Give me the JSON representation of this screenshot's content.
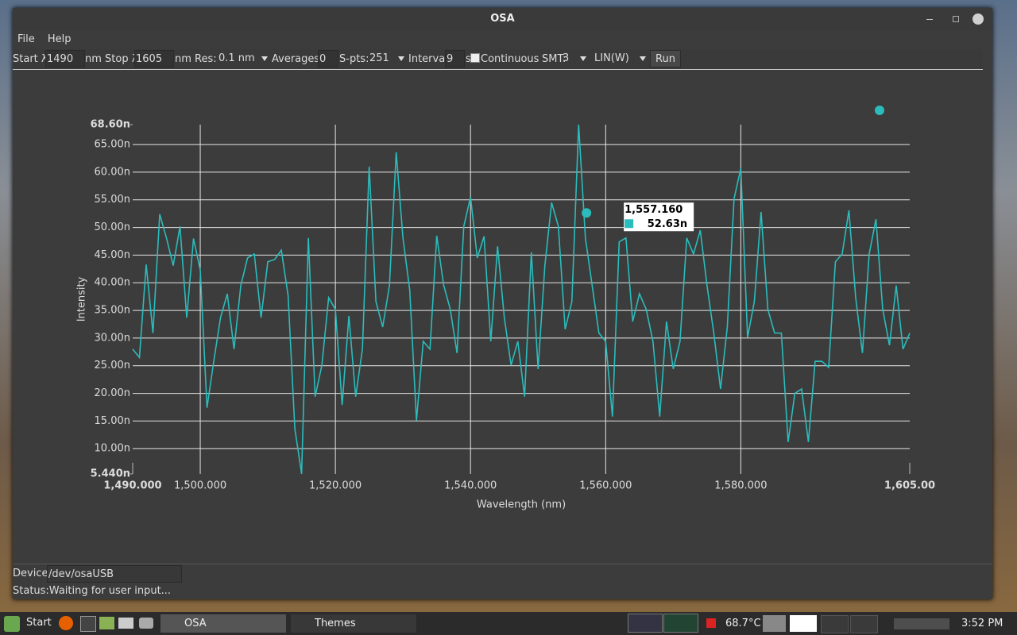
{
  "window": {
    "title": "OSA"
  },
  "menu": [
    "File",
    "Help"
  ],
  "toolbar": {
    "start_label": "Start λ:",
    "start_value": 1490,
    "stop_label": "nm Stop λ:",
    "stop_value": 1605,
    "res_label": "nm Res:",
    "res_value": "0.1 nm",
    "averages_label": "Averages:",
    "averages_value": 0,
    "spts_label": "S-pts:",
    "spts_value": 251,
    "interval_label": "Interval:",
    "interval_value": 9,
    "interval_unit": "s",
    "continuous_label": "Continuous",
    "smt_label": "SMT:",
    "smt_value": 3,
    "scale_value": "LIN(W)",
    "run_button": "Run"
  },
  "chart_data": {
    "type": "line",
    "xlabel": "Wavelength (nm)",
    "ylabel": "Intensity",
    "color": "#2bbcbc",
    "grid": true,
    "xlim": [
      1490,
      1605
    ],
    "ylim": [
      5.44,
      68.6
    ],
    "xticks": [
      {
        "value": 1490,
        "label": "1,490.000"
      },
      {
        "value": 1500,
        "label": "1,500.000"
      },
      {
        "value": 1520,
        "label": "1,520.000"
      },
      {
        "value": 1540,
        "label": "1,540.000"
      },
      {
        "value": 1560,
        "label": "1,560.000"
      },
      {
        "value": 1580,
        "label": "1,580.000"
      },
      {
        "value": 1605,
        "label": "1,605.00"
      }
    ],
    "yticks": [
      {
        "value": 68.6,
        "label": "68.60n"
      },
      {
        "value": 65,
        "label": "65.00n"
      },
      {
        "value": 60,
        "label": "60.00n"
      },
      {
        "value": 55,
        "label": "55.00n"
      },
      {
        "value": 50,
        "label": "50.00n"
      },
      {
        "value": 45,
        "label": "45.00n"
      },
      {
        "value": 40,
        "label": "40.00n"
      },
      {
        "value": 35,
        "label": "35.00n"
      },
      {
        "value": 30,
        "label": "30.00n"
      },
      {
        "value": 25,
        "label": "25.00n"
      },
      {
        "value": 20,
        "label": "20.00n"
      },
      {
        "value": 15,
        "label": "15.00n"
      },
      {
        "value": 10,
        "label": "10.00n"
      },
      {
        "value": 5.44,
        "label": "5.440n"
      }
    ],
    "x": [
      1490,
      1491,
      1492,
      1493,
      1494,
      1495,
      1496,
      1497,
      1498,
      1499,
      1500,
      1501,
      1502,
      1503,
      1504,
      1505,
      1506,
      1507,
      1508,
      1509,
      1510,
      1511,
      1512,
      1513,
      1514,
      1515,
      1516,
      1517,
      1518,
      1519,
      1520,
      1521,
      1522,
      1523,
      1524,
      1525,
      1526,
      1527,
      1528,
      1529,
      1530,
      1531,
      1532,
      1533,
      1534,
      1535,
      1536,
      1537,
      1538,
      1539,
      1540,
      1541,
      1542,
      1543,
      1544,
      1545,
      1546,
      1547,
      1548,
      1549,
      1550,
      1551,
      1552,
      1553,
      1554,
      1555,
      1556,
      1557,
      1558,
      1559,
      1560,
      1561,
      1562,
      1563,
      1564,
      1565,
      1566,
      1567,
      1568,
      1569,
      1570,
      1571,
      1572,
      1573,
      1574,
      1575,
      1576,
      1577,
      1578,
      1579,
      1580,
      1581,
      1582,
      1583,
      1584,
      1585,
      1586,
      1587,
      1588,
      1589,
      1590,
      1591,
      1592,
      1593,
      1594,
      1595,
      1596,
      1597,
      1598,
      1599,
      1600,
      1601,
      1602,
      1603,
      1604,
      1605
    ],
    "values": [
      28.0,
      26.5,
      43.3,
      30.9,
      52.4,
      48.1,
      43.1,
      50.2,
      33.7,
      48.0,
      42.3,
      17.4,
      25.8,
      33.7,
      38.0,
      28.0,
      39.5,
      44.5,
      45.2,
      33.7,
      43.8,
      44.2,
      45.9,
      37.7,
      13.6,
      5.44,
      48.1,
      19.4,
      25.1,
      37.3,
      35.2,
      17.9,
      34.0,
      19.4,
      28.0,
      61.0,
      36.6,
      32.0,
      39.5,
      63.6,
      48.1,
      38.7,
      15.1,
      29.4,
      28.0,
      48.5,
      39.7,
      35.2,
      27.3,
      50.2,
      55.5,
      44.5,
      48.4,
      29.4,
      46.6,
      33.7,
      25.1,
      29.4,
      19.4,
      45.5,
      24.4,
      43.1,
      54.5,
      50.2,
      31.6,
      36.6,
      68.6,
      48.1,
      39.5,
      30.9,
      29.4,
      15.8,
      47.4,
      48.1,
      33.0,
      38.0,
      35.2,
      29.4,
      15.8,
      33.0,
      24.4,
      29.4,
      48.1,
      45.2,
      49.5,
      39.5,
      30.9,
      20.8,
      32.0,
      55.2,
      60.7,
      30.1,
      36.6,
      52.8,
      35.2,
      30.9,
      30.9,
      11.2,
      20.0,
      20.8,
      11.2,
      25.8,
      25.8,
      24.7,
      43.8,
      45.2,
      53.1,
      37.3,
      27.3,
      45.2,
      51.5,
      35.2,
      28.7,
      39.5,
      28.0,
      30.9
    ],
    "hover": {
      "x": 1557.16,
      "x_label": "1,557.160",
      "value": 52.63,
      "value_label": "52.63n"
    }
  },
  "status": {
    "device_label": "Device:",
    "device_value": "/dev/osaUSB",
    "status_text": "Status:Waiting for user input..."
  },
  "taskbar": {
    "start": "Start",
    "windows": [
      "OSA",
      "Themes"
    ],
    "temperature": "68.7°C",
    "clock": "3:52 PM"
  }
}
